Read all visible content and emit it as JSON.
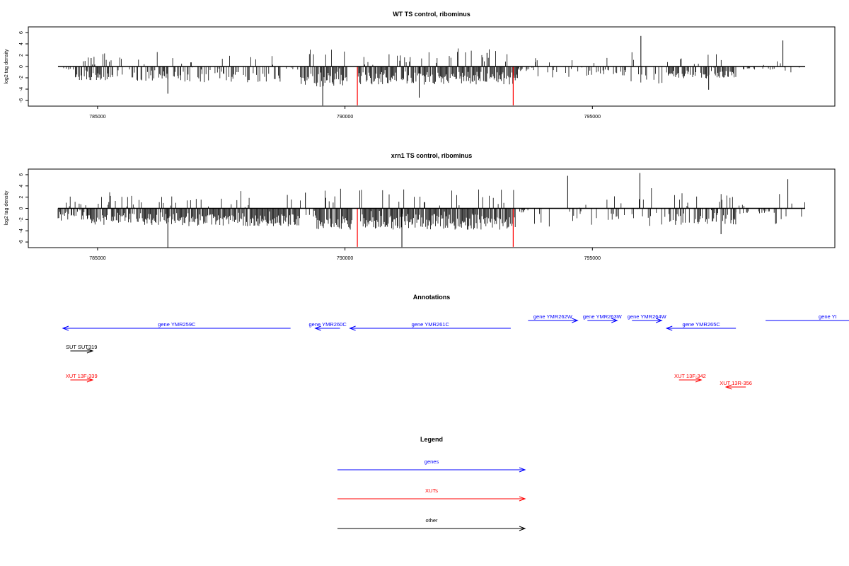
{
  "chart_data": [
    {
      "type": "bar",
      "id": "panel1",
      "title": "WT TS control, ribominus",
      "ylabel": "log2 tag density",
      "xlim": [
        783600,
        799900
      ],
      "ylim": [
        -7,
        7
      ],
      "xticks": [
        785000,
        790000,
        795000
      ],
      "xtick_labels": [
        "785000",
        "790000",
        "795000"
      ],
      "yticks": [
        -6,
        -4,
        -2,
        0,
        2,
        4,
        6
      ],
      "ytick_labels": [
        "-6",
        "-4",
        "-2",
        "0",
        "2",
        "4",
        "6"
      ],
      "bars_x_range": [
        784200,
        799300
      ],
      "markers_x": [
        790250,
        793400
      ],
      "marker_color": "#ff0000",
      "segments": [
        {
          "x0": 784200,
          "x1": 784550,
          "d": 0.2,
          "amp": 0.6
        },
        {
          "x0": 784550,
          "x1": 785400,
          "d": 0.7,
          "amp": 2.4
        },
        {
          "x0": 785400,
          "x1": 786600,
          "d": 0.35,
          "amp": 2.6
        },
        {
          "x0": 786600,
          "x1": 788700,
          "d": 0.35,
          "amp": 2.8
        },
        {
          "x0": 788700,
          "x1": 789100,
          "d": 0.1,
          "amp": 0.6
        },
        {
          "x0": 789100,
          "x1": 790050,
          "d": 0.75,
          "amp": 3.6
        },
        {
          "x0": 790050,
          "x1": 790250,
          "d": 0.0,
          "amp": 0.3
        },
        {
          "x0": 790250,
          "x1": 793500,
          "d": 0.85,
          "amp": 3.2
        },
        {
          "x0": 793500,
          "x1": 793850,
          "d": 0.4,
          "amp": 0.8
        },
        {
          "x0": 793850,
          "x1": 794900,
          "d": 0.15,
          "amp": 2.0
        },
        {
          "x0": 794900,
          "x1": 795700,
          "d": 0.25,
          "amp": 1.8
        },
        {
          "x0": 795700,
          "x1": 796500,
          "d": 0.15,
          "amp": 3.0
        },
        {
          "x0": 796500,
          "x1": 797900,
          "d": 0.6,
          "amp": 2.2
        },
        {
          "x0": 797900,
          "x1": 798700,
          "d": 0.3,
          "amp": 0.6
        },
        {
          "x0": 798700,
          "x1": 799300,
          "d": 0.05,
          "amp": 2.6
        }
      ],
      "peaks": [
        {
          "x": 795980,
          "y": 5.4
        },
        {
          "x": 798850,
          "y": 4.6
        },
        {
          "x": 789550,
          "y": -6.9
        },
        {
          "x": 791500,
          "y": -5.5
        },
        {
          "x": 786420,
          "y": -4.8
        },
        {
          "x": 797350,
          "y": -4.1
        },
        {
          "x": 784870,
          "y": 1.5
        },
        {
          "x": 792870,
          "y": 2.4
        }
      ]
    },
    {
      "type": "bar",
      "id": "panel2",
      "title": "xrn1 TS control, ribominus",
      "ylabel": "log2 tag density",
      "xlim": [
        783600,
        799900
      ],
      "ylim": [
        -7,
        7
      ],
      "xticks": [
        785000,
        790000,
        795000
      ],
      "xtick_labels": [
        "785000",
        "790000",
        "795000"
      ],
      "yticks": [
        -6,
        -4,
        -2,
        0,
        2,
        4,
        6
      ],
      "ytick_labels": [
        "-6",
        "-4",
        "-2",
        "0",
        "2",
        "4",
        "6"
      ],
      "bars_x_range": [
        784200,
        799300
      ],
      "markers_x": [
        790250,
        793400
      ],
      "marker_color": "#ff0000",
      "segments": [
        {
          "x0": 784200,
          "x1": 784800,
          "d": 0.65,
          "amp": 2.2
        },
        {
          "x0": 784800,
          "x1": 786500,
          "d": 0.85,
          "amp": 3.0
        },
        {
          "x0": 786500,
          "x1": 789100,
          "d": 0.9,
          "amp": 3.2
        },
        {
          "x0": 789100,
          "x1": 789400,
          "d": 0.2,
          "amp": 1.6
        },
        {
          "x0": 789400,
          "x1": 790150,
          "d": 0.9,
          "amp": 3.8
        },
        {
          "x0": 790150,
          "x1": 790300,
          "d": 0.0,
          "amp": 0.3
        },
        {
          "x0": 790300,
          "x1": 793450,
          "d": 0.95,
          "amp": 3.8
        },
        {
          "x0": 793450,
          "x1": 793700,
          "d": 0.3,
          "amp": 0.8
        },
        {
          "x0": 793700,
          "x1": 795300,
          "d": 0.05,
          "amp": 3.4
        },
        {
          "x0": 795300,
          "x1": 795700,
          "d": 0.4,
          "amp": 2.2
        },
        {
          "x0": 795700,
          "x1": 796400,
          "d": 0.1,
          "amp": 3.6
        },
        {
          "x0": 796400,
          "x1": 797900,
          "d": 0.5,
          "amp": 3.0
        },
        {
          "x0": 797900,
          "x1": 798700,
          "d": 0.4,
          "amp": 1.0
        },
        {
          "x0": 798700,
          "x1": 799300,
          "d": 0.1,
          "amp": 2.8
        }
      ],
      "peaks": [
        {
          "x": 795960,
          "y": 6.3
        },
        {
          "x": 798950,
          "y": 5.2
        },
        {
          "x": 786420,
          "y": -7.0
        },
        {
          "x": 791150,
          "y": -6.9
        },
        {
          "x": 789200,
          "y": 2.8
        },
        {
          "x": 794500,
          "y": 5.8
        },
        {
          "x": 797600,
          "y": -4.6
        }
      ]
    }
  ],
  "annotations": {
    "title": "Annotations",
    "features": [
      {
        "label": "gene YMR259C",
        "x_start": 788900,
        "x_end": 784300,
        "color": "#0000ff",
        "row": 1
      },
      {
        "label": "gene YMR260C",
        "x_start": 789900,
        "x_end": 789400,
        "color": "#0000ff",
        "row": 1
      },
      {
        "label": "gene YMR261C",
        "x_start": 793350,
        "x_end": 790100,
        "color": "#0000ff",
        "row": 1
      },
      {
        "label": "gene YMR262W",
        "x_start": 793700,
        "x_end": 794700,
        "color": "#0000ff",
        "row": 0
      },
      {
        "label": "gene YMR263W",
        "x_start": 794900,
        "x_end": 795500,
        "color": "#0000ff",
        "row": 0
      },
      {
        "label": "gene YMR264W",
        "x_start": 795800,
        "x_end": 796400,
        "color": "#0000ff",
        "row": 0
      },
      {
        "label": "gene YMR265C",
        "x_start": 797900,
        "x_end": 796500,
        "color": "#0000ff",
        "row": 1
      },
      {
        "label": "gene YI",
        "x_start": 798500,
        "x_end": 800200,
        "color": "#0000ff",
        "row": 0
      },
      {
        "label": "SUT SUT319",
        "x_start": 784450,
        "x_end": 784900,
        "color": "#000000",
        "row": 2
      },
      {
        "label": "XUT 13F-339",
        "x_start": 784450,
        "x_end": 784900,
        "color": "#ff0000",
        "row": 3
      },
      {
        "label": "XUT 13F-342",
        "x_start": 796750,
        "x_end": 797200,
        "color": "#ff0000",
        "row": 3
      },
      {
        "label": "XUT 13R-356",
        "x_start": 798100,
        "x_end": 797700,
        "color": "#ff0000",
        "row": 4
      }
    ]
  },
  "legend": {
    "title": "Legend",
    "entries": [
      {
        "label": "genes",
        "color": "#0000ff"
      },
      {
        "label": "XUTs",
        "color": "#ff0000"
      },
      {
        "label": "other",
        "color": "#000000"
      }
    ]
  }
}
